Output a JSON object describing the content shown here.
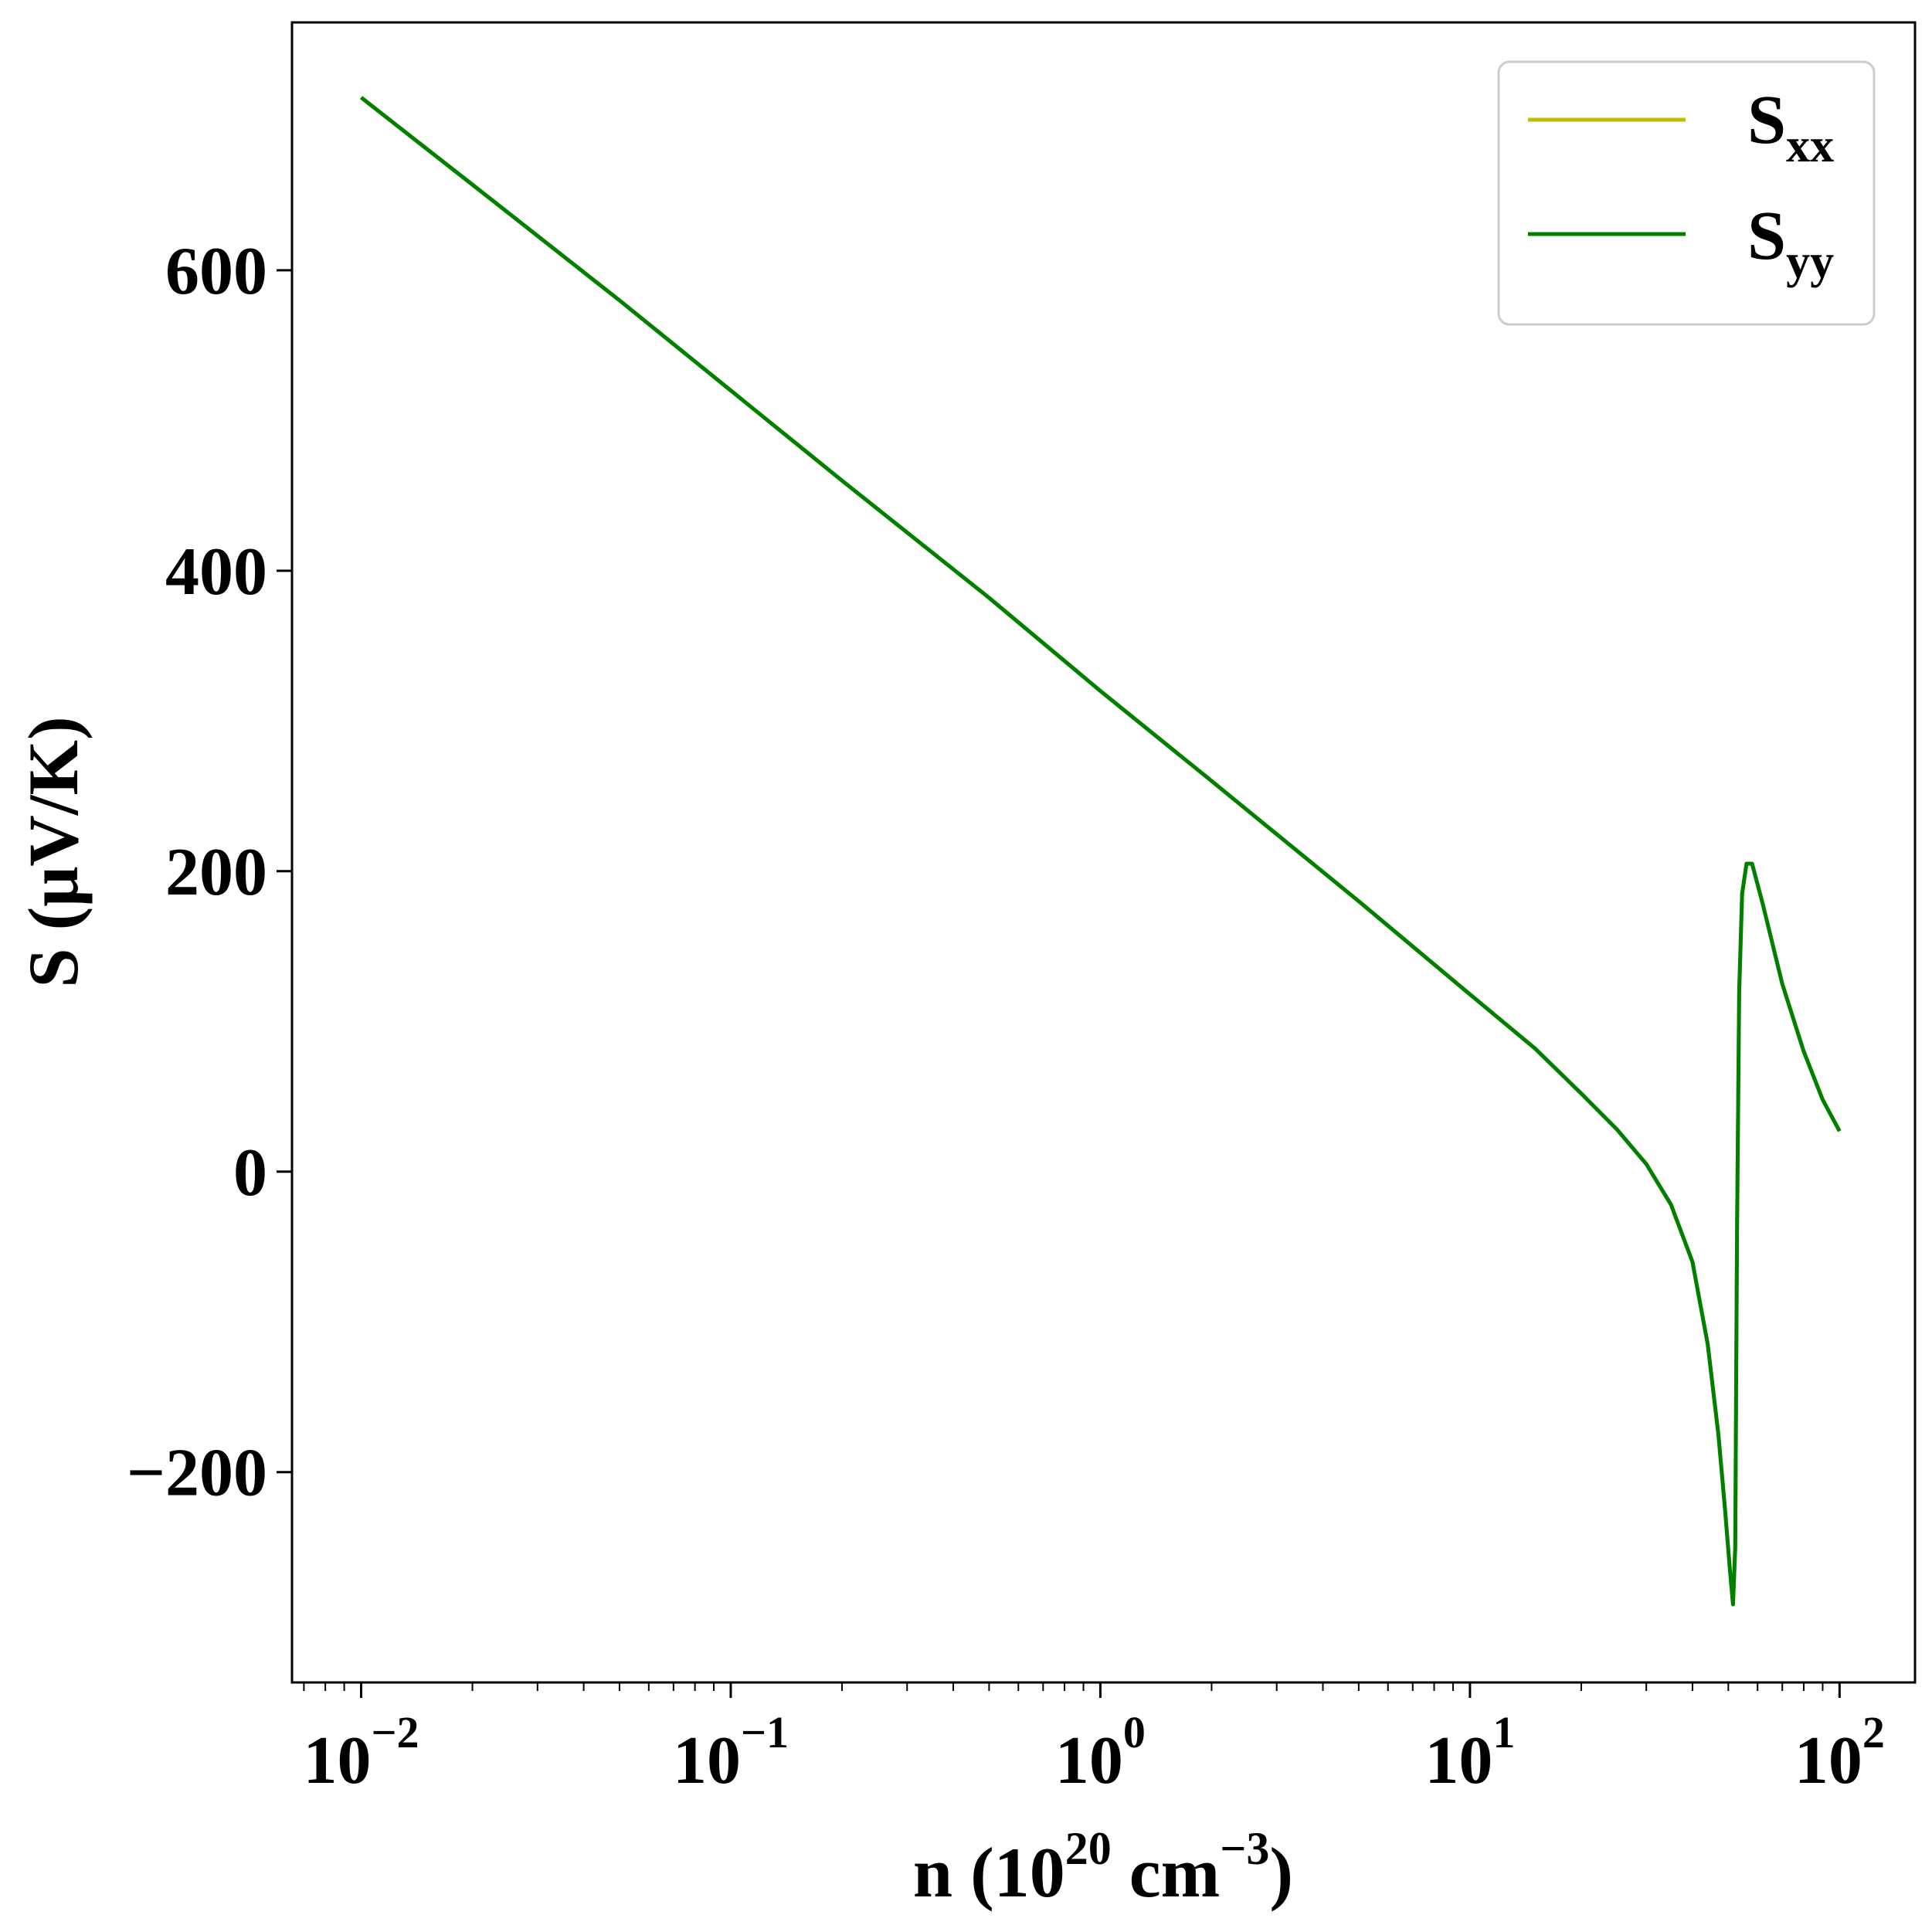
{
  "chart_data": {
    "type": "line",
    "xscale": "log",
    "xlim": [
      0.0065,
      160
    ],
    "ylim": [
      -340,
      765
    ],
    "grid": false,
    "legend_position": "top-right",
    "xlabel": {
      "base": "n (10",
      "exp1": "20",
      "mid": " cm",
      "exp2": "−3",
      "end": ")"
    },
    "ylabel": "S (μV/K)",
    "x_ticks": [
      {
        "value": 0.01,
        "base": "10",
        "exp": "−2"
      },
      {
        "value": 0.1,
        "base": "10",
        "exp": "−1"
      },
      {
        "value": 1,
        "base": "10",
        "exp": "0"
      },
      {
        "value": 10,
        "base": "10",
        "exp": "1"
      },
      {
        "value": 100,
        "base": "10",
        "exp": "2"
      }
    ],
    "y_ticks": [
      {
        "value": -200,
        "label": "−200"
      },
      {
        "value": 0,
        "label": "0"
      },
      {
        "value": 200,
        "label": "200"
      },
      {
        "value": 400,
        "label": "400"
      },
      {
        "value": 600,
        "label": "600"
      }
    ],
    "series": [
      {
        "name": "S",
        "sub": "xx",
        "color": "#bfbf00",
        "points": [
          [
            0.01,
            715
          ],
          [
            0.02,
            657
          ],
          [
            0.05,
            580
          ],
          [
            0.1,
            520
          ],
          [
            0.2,
            460
          ],
          [
            0.5,
            382
          ],
          [
            1,
            320
          ],
          [
            2,
            260
          ],
          [
            5,
            180
          ],
          [
            10,
            118
          ],
          [
            15,
            82
          ],
          [
            20,
            52
          ],
          [
            25,
            28
          ],
          [
            30,
            5
          ],
          [
            35,
            -22
          ],
          [
            40,
            -60
          ],
          [
            44,
            -115
          ],
          [
            47,
            -175
          ],
          [
            49,
            -225
          ],
          [
            50.5,
            -265
          ],
          [
            51.5,
            -288
          ],
          [
            52.2,
            -250
          ],
          [
            52.8,
            -40
          ],
          [
            53.5,
            120
          ],
          [
            54.5,
            185
          ],
          [
            56,
            205
          ],
          [
            58,
            205
          ],
          [
            62,
            178
          ],
          [
            70,
            125
          ],
          [
            80,
            80
          ],
          [
            90,
            48
          ],
          [
            100,
            27
          ]
        ]
      },
      {
        "name": "S",
        "sub": "yy",
        "color": "#008000",
        "points": [
          [
            0.01,
            715
          ],
          [
            0.02,
            657
          ],
          [
            0.05,
            580
          ],
          [
            0.1,
            520
          ],
          [
            0.2,
            460
          ],
          [
            0.5,
            382
          ],
          [
            1,
            320
          ],
          [
            2,
            260
          ],
          [
            5,
            180
          ],
          [
            10,
            118
          ],
          [
            15,
            82
          ],
          [
            20,
            52
          ],
          [
            25,
            28
          ],
          [
            30,
            5
          ],
          [
            35,
            -22
          ],
          [
            40,
            -60
          ],
          [
            44,
            -115
          ],
          [
            47,
            -175
          ],
          [
            49,
            -225
          ],
          [
            50.5,
            -265
          ],
          [
            51.5,
            -288
          ],
          [
            52.2,
            -250
          ],
          [
            52.8,
            -40
          ],
          [
            53.5,
            120
          ],
          [
            54.5,
            185
          ],
          [
            56,
            205
          ],
          [
            58,
            205
          ],
          [
            62,
            178
          ],
          [
            70,
            125
          ],
          [
            80,
            80
          ],
          [
            90,
            48
          ],
          [
            100,
            27
          ]
        ]
      }
    ]
  }
}
